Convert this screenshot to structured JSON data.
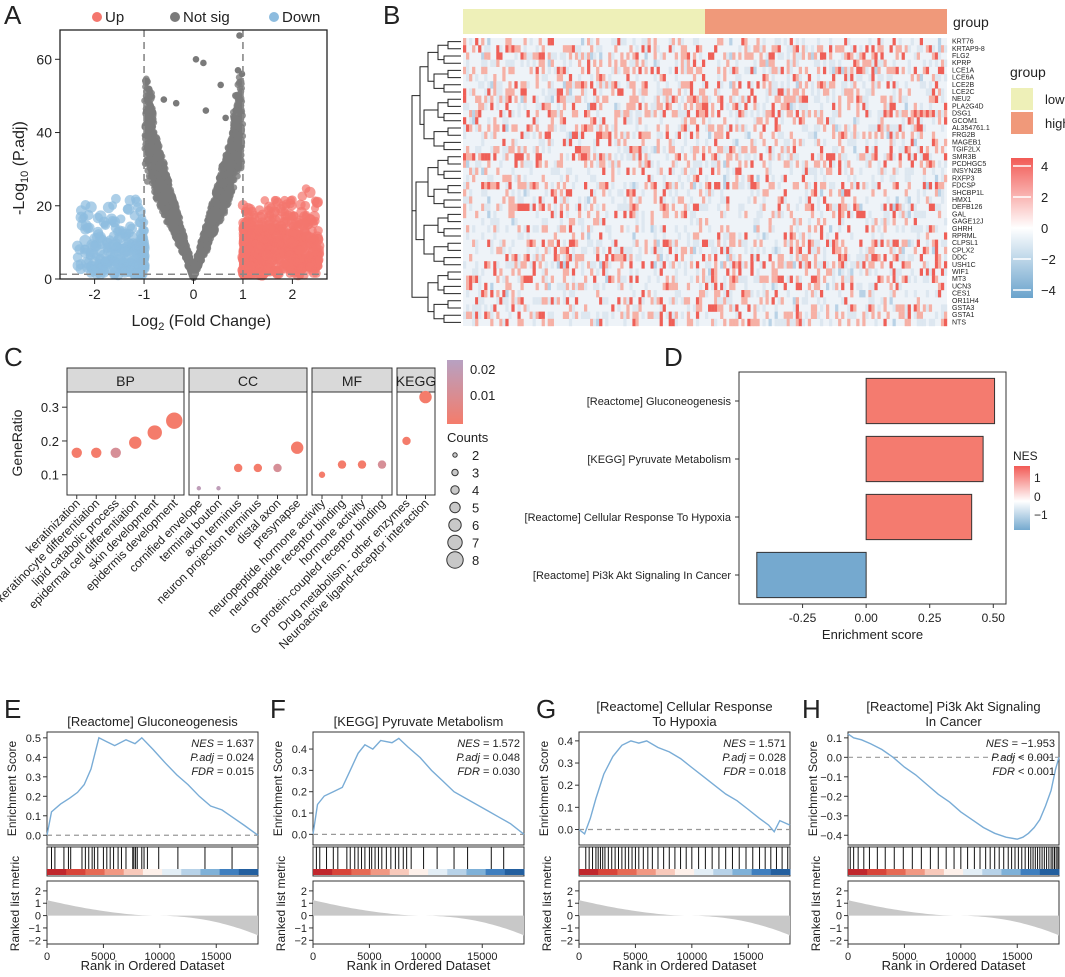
{
  "panel_letters": [
    "A",
    "B",
    "C",
    "D",
    "E",
    "F",
    "G",
    "H"
  ],
  "chart_data": [
    {
      "panel": "A",
      "type": "scatter",
      "legend": [
        "Up",
        "Not sig",
        "Down"
      ],
      "colors": {
        "up": "#f4766d",
        "notsig": "#7a7a7a",
        "down": "#8dbcdf"
      },
      "xlabel_pre": "Log",
      "xlabel_sub": "2",
      "xlabel_post": " (Fold Change)",
      "ylabel_pre": "-Log",
      "ylabel_sub": "10",
      "ylabel_post": " (P.adj)",
      "xlim": [
        -2.7,
        2.7
      ],
      "ylim": [
        0,
        68
      ],
      "xticks": [
        -2,
        -1,
        0,
        1,
        2
      ],
      "yticks": [
        0,
        20,
        40,
        60
      ],
      "fc_threshold": 1,
      "p_line": 1.3
    },
    {
      "panel": "B",
      "type": "heatmap",
      "genes": [
        "KRT76",
        "KRTAP9-8",
        "FLG2",
        "KPRP",
        "LCE1A",
        "LCE6A",
        "LCE2B",
        "LCE2C",
        "NEU2",
        "PLA2G4D",
        "DSG1",
        "GCOM1",
        "AL354761.1",
        "FRG2B",
        "MAGEB1",
        "TGIF2LX",
        "SMR3B",
        "PCDHGC5",
        "INSYN2B",
        "RXFP3",
        "FDCSP",
        "SHCBP1L",
        "HMX1",
        "DEFB126",
        "GAL",
        "GAGE12J",
        "GHRH",
        "RPRML",
        "CLPSL1",
        "CPLX2",
        "DDC",
        "USH1C",
        "WIF1",
        "MT3",
        "UCN3",
        "CES1",
        "OR11H4",
        "GSTA3",
        "GSTA1",
        "NTS"
      ],
      "group_title": "group",
      "groups": [
        {
          "name": "low",
          "color": "#eef0b8"
        },
        {
          "name": "high",
          "color": "#f0997a"
        }
      ],
      "scale_ticks": [
        4,
        2,
        0,
        -2,
        -4
      ]
    },
    {
      "panel": "C",
      "type": "scatter",
      "ylabel": "GeneRatio",
      "yticks": [
        0.1,
        0.2,
        0.3
      ],
      "ylim": [
        0.04,
        0.345
      ],
      "facets": [
        {
          "name": "BP",
          "terms": [
            "keratinization",
            "keratinocyte differentiation",
            "lipid catabolic process",
            "epidermal cell differentiation",
            "skin development",
            "epidermis development"
          ],
          "ratio": [
            0.165,
            0.165,
            0.165,
            0.195,
            0.225,
            0.26
          ],
          "count": [
            5,
            5,
            5,
            6,
            7,
            8
          ],
          "padj": [
            0.004,
            0.004,
            0.013,
            0.004,
            0.004,
            0.004
          ]
        },
        {
          "name": "CC",
          "terms": [
            "cornified envelope",
            "terminal bouton",
            "axon terminus",
            "neuron projection terminus",
            "distal axon",
            "presynapse"
          ],
          "ratio": [
            0.06,
            0.06,
            0.12,
            0.12,
            0.12,
            0.18
          ],
          "count": [
            2,
            2,
            4,
            4,
            4,
            6
          ],
          "padj": [
            0.02,
            0.02,
            0.004,
            0.004,
            0.013,
            0.004
          ]
        },
        {
          "name": "MF",
          "terms": [
            "neuropeptide hormone activity",
            "neuropeptide receptor binding",
            "hormone activity",
            "G protein-coupled receptor binding"
          ],
          "ratio": [
            0.1,
            0.13,
            0.13,
            0.13
          ],
          "count": [
            3,
            4,
            4,
            4
          ],
          "padj": [
            0.004,
            0.004,
            0.004,
            0.013
          ]
        },
        {
          "name": "KEGG",
          "terms": [
            "Drug metabolism - other enzymes",
            "Neuroactive ligand-receptor interaction"
          ],
          "ratio": [
            0.2,
            0.33
          ],
          "count": [
            4,
            6
          ],
          "padj": [
            0.004,
            0.004
          ]
        }
      ],
      "color_ticks": [
        0.02,
        0.01
      ],
      "counts_title": "Counts",
      "counts_legend": [
        2,
        3,
        4,
        5,
        6,
        7,
        8
      ]
    },
    {
      "panel": "D",
      "type": "bar",
      "categories": [
        "[Reactome] Gluconeogenesis",
        "[KEGG] Pyruvate Metabolism",
        "[Reactome] Cellular Response To Hypoxia",
        "[Reactome] Pi3k Akt Signaling In Cancer"
      ],
      "values": [
        0.505,
        0.46,
        0.415,
        -0.43
      ],
      "nes": [
        1.637,
        1.572,
        1.571,
        -1.953
      ],
      "xlabel": "Enrichment score",
      "xlim": [
        -0.5,
        0.55
      ],
      "xticks": [
        -0.25,
        0.0,
        0.25,
        0.5
      ],
      "xtick_labels": [
        "-0.25",
        "0.00",
        "0.25",
        "0.50"
      ],
      "legend_title": "NES",
      "legend_ticks": [
        "1",
        "0",
        "−1"
      ]
    },
    {
      "panel": "E",
      "type": "line",
      "title": [
        "[Reactome] Gluconeogenesis"
      ],
      "ylabel": "Enrichment Score",
      "rank_ylabel": "Ranked list metric",
      "xlabel": "Rank in Ordered Dataset",
      "stats": [
        {
          "name": "NES",
          "val": "= 1.637"
        },
        {
          "name": "P.adj",
          "val": "= 0.024"
        },
        {
          "name": "FDR",
          "val": "= 0.015"
        }
      ],
      "x": [
        0,
        400,
        1200,
        2000,
        2700,
        3300,
        3900,
        4600,
        5300,
        6000,
        7000,
        7800,
        8400,
        9400,
        10500,
        11500,
        12500,
        13500,
        14500,
        15500,
        16500,
        17500,
        18700
      ],
      "y": [
        0,
        0.12,
        0.16,
        0.19,
        0.22,
        0.26,
        0.34,
        0.5,
        0.48,
        0.46,
        0.49,
        0.47,
        0.5,
        0.44,
        0.37,
        0.31,
        0.26,
        0.2,
        0.15,
        0.13,
        0.09,
        0.05,
        0.0
      ],
      "yticks": [
        0.0,
        0.1,
        0.2,
        0.3,
        0.4,
        0.5
      ],
      "ylim": [
        -0.05,
        0.53
      ],
      "xticks": [
        0,
        5000,
        10000,
        15000
      ],
      "xlim": [
        0,
        18700
      ],
      "rank_yticks": [
        2,
        1,
        0,
        -1,
        -2
      ],
      "rank_ylim": [
        -2.3,
        2.8
      ],
      "hits": [
        400,
        700,
        1500,
        1900,
        2100,
        3100,
        3400,
        3700,
        4000,
        4200,
        4500,
        5000,
        5300,
        5600,
        5900,
        6300,
        6600,
        7000,
        7600,
        7700,
        7850,
        8000,
        8400,
        8600,
        8900,
        9900,
        11600,
        14000,
        16400
      ]
    },
    {
      "panel": "F",
      "type": "line",
      "title": [
        "[KEGG] Pyruvate Metabolism"
      ],
      "ylabel": "Enrichment Score",
      "rank_ylabel": "Ranked list metric",
      "xlabel": "Rank in Ordered Dataset",
      "stats": [
        {
          "name": "NES",
          "val": "= 1.572"
        },
        {
          "name": "P.adj",
          "val": "= 0.048"
        },
        {
          "name": "FDR",
          "val": "= 0.030"
        }
      ],
      "x": [
        0,
        400,
        1000,
        1800,
        2600,
        3300,
        4000,
        4600,
        5300,
        6000,
        7000,
        7600,
        8400,
        9500,
        10500,
        11500,
        12500,
        13500,
        14500,
        15500,
        16500,
        17500,
        18700
      ],
      "y": [
        0,
        0.14,
        0.18,
        0.2,
        0.22,
        0.3,
        0.38,
        0.42,
        0.4,
        0.44,
        0.43,
        0.45,
        0.41,
        0.36,
        0.3,
        0.25,
        0.2,
        0.17,
        0.14,
        0.11,
        0.08,
        0.05,
        0.0
      ],
      "yticks": [
        0.0,
        0.1,
        0.2,
        0.3,
        0.4
      ],
      "ylim": [
        -0.05,
        0.48
      ],
      "xticks": [
        0,
        5000,
        10000,
        15000
      ],
      "xlim": [
        0,
        18700
      ],
      "rank_yticks": [
        2,
        1,
        0,
        -1,
        -2
      ],
      "rank_ylim": [
        -2.3,
        2.8
      ],
      "hits": [
        300,
        600,
        1200,
        1800,
        2200,
        3000,
        3300,
        3700,
        4000,
        4300,
        4600,
        5000,
        5200,
        5500,
        5800,
        6100,
        6500,
        6900,
        7300,
        7600,
        8000,
        8300,
        8700,
        9800,
        11000,
        12500,
        13700,
        15800,
        16900
      ]
    },
    {
      "panel": "G",
      "type": "line",
      "title": [
        "[Reactome] Cellular Response",
        "To Hypoxia"
      ],
      "ylabel": "Enrichment Score",
      "rank_ylabel": "Ranked list metric",
      "xlabel": "Rank in Ordered Dataset",
      "stats": [
        {
          "name": "NES",
          "val": "= 1.571"
        },
        {
          "name": "P.adj",
          "val": "= 0.028"
        },
        {
          "name": "FDR",
          "val": "= 0.018"
        }
      ],
      "x": [
        0,
        500,
        1000,
        1500,
        2200,
        3000,
        3800,
        4600,
        5300,
        6000,
        7000,
        8000,
        9000,
        10000,
        11000,
        12000,
        13000,
        14000,
        15000,
        16000,
        16800,
        17300,
        17800,
        18700
      ],
      "y": [
        0,
        -0.02,
        0.05,
        0.14,
        0.25,
        0.33,
        0.38,
        0.4,
        0.39,
        0.4,
        0.37,
        0.35,
        0.32,
        0.28,
        0.24,
        0.2,
        0.16,
        0.13,
        0.09,
        0.05,
        0.02,
        -0.01,
        0.04,
        0.02
      ],
      "yticks": [
        0.0,
        0.1,
        0.2,
        0.3,
        0.4
      ],
      "ylim": [
        -0.07,
        0.44
      ],
      "xticks": [
        0,
        5000,
        10000,
        15000
      ],
      "xlim": [
        0,
        18700
      ],
      "rank_yticks": [
        2,
        1,
        0,
        -1,
        -2
      ],
      "rank_ylim": [
        -2.3,
        2.8
      ],
      "hits": [
        600,
        900,
        1200,
        1500,
        1700,
        1900,
        2100,
        2300,
        2600,
        2900,
        3200,
        3500,
        3800,
        4100,
        4400,
        4700,
        5000,
        5300,
        5700,
        6100,
        6500,
        7000,
        7500,
        8000,
        8500,
        9000,
        9500,
        10000,
        10600,
        11200,
        11800,
        12400,
        13000,
        13600,
        14200,
        14800,
        15400,
        16000,
        16500,
        17000,
        17500,
        18000,
        18500
      ]
    },
    {
      "panel": "H",
      "type": "line",
      "title": [
        "[Reactome] Pi3k Akt Signaling",
        "In Cancer"
      ],
      "ylabel": "Enrichment Score",
      "rank_ylabel": "Ranked list metric",
      "xlabel": "Rank in Ordered Dataset",
      "stats": [
        {
          "name": "NES",
          "val": "= −1.953"
        },
        {
          "name": "P.adj",
          "val": "< 0.001"
        },
        {
          "name": "FDR",
          "val": "< 0.001"
        }
      ],
      "x": [
        0,
        500,
        1200,
        2000,
        3000,
        4000,
        5000,
        6000,
        7000,
        8000,
        9000,
        10000,
        11000,
        12000,
        13000,
        14000,
        15000,
        15500,
        16000,
        16500,
        17000,
        17500,
        18000,
        18400,
        18700
      ],
      "y": [
        0.12,
        0.1,
        0.09,
        0.07,
        0.04,
        0.0,
        -0.05,
        -0.09,
        -0.14,
        -0.19,
        -0.23,
        -0.28,
        -0.32,
        -0.36,
        -0.39,
        -0.41,
        -0.42,
        -0.41,
        -0.39,
        -0.36,
        -0.32,
        -0.25,
        -0.17,
        -0.06,
        0.0
      ],
      "yticks": [
        0.1,
        0.0,
        -0.1,
        -0.2,
        -0.3,
        -0.4
      ],
      "ylim": [
        -0.45,
        0.13
      ],
      "xticks": [
        0,
        5000,
        10000,
        15000
      ],
      "xlim": [
        0,
        18700
      ],
      "rank_yticks": [
        2,
        1,
        0,
        -1,
        -2
      ],
      "rank_ylim": [
        -2.3,
        2.8
      ],
      "hits": [
        200,
        500,
        900,
        1400,
        1900,
        2600,
        3300,
        4100,
        4900,
        5700,
        6500,
        7300,
        8000,
        8700,
        9400,
        10000,
        10600,
        11200,
        11700,
        12200,
        12600,
        13000,
        13400,
        13800,
        14200,
        14500,
        14800,
        15100,
        15400,
        15700,
        16000,
        16200,
        16400,
        16600,
        16800,
        17000,
        17200,
        17400,
        17600,
        17800,
        18000,
        18150,
        18300,
        18450,
        18600
      ]
    }
  ]
}
